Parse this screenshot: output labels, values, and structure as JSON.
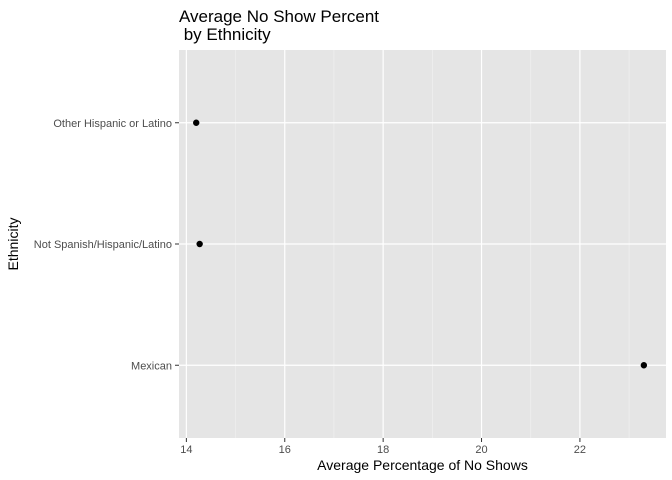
{
  "chart_data": {
    "type": "scatter",
    "title": "Average No Show Percent\n by Ethnicity",
    "title_lines": [
      "Average No Show Percent",
      " by Ethnicity"
    ],
    "xlabel": "Average Percentage of No Shows",
    "ylabel": "Ethnicity",
    "xlim": [
      13.85,
      23.75
    ],
    "x_ticks": [
      14,
      16,
      18,
      20,
      22
    ],
    "x_tick_labels": [
      "14",
      "16",
      "18",
      "20",
      "22"
    ],
    "categories": [
      "Mexican",
      "Not Spanish/Hispanic/Latino",
      "Other Hispanic or Latino"
    ],
    "values": [
      23.3,
      14.27,
      14.2
    ],
    "grid": true,
    "legend": "none",
    "panel_color": "#e5e5e5",
    "grid_color": "#ffffff",
    "point_color": "#000000"
  }
}
